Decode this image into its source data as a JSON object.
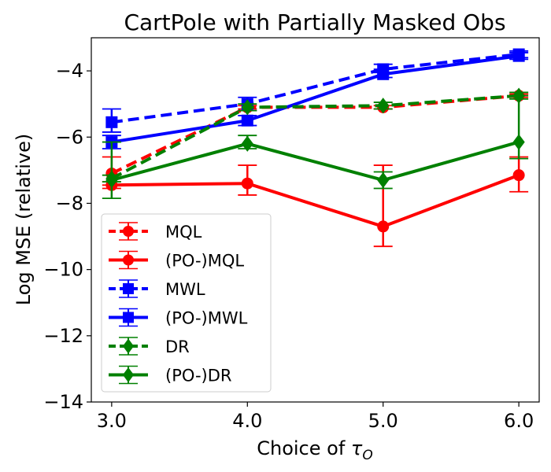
{
  "chart_data": {
    "type": "line",
    "title": "CartPole with Partially Masked Obs",
    "xlabel_text": "Choice of ",
    "xlabel_symbol": "τ",
    "xlabel_subscript": "O",
    "ylabel": "Log MSE (relative)",
    "x": [
      3.0,
      4.0,
      5.0,
      6.0
    ],
    "x_tick_labels": [
      "3.0",
      "4.0",
      "5.0",
      "6.0"
    ],
    "y_ticks": [
      -4,
      -6,
      -8,
      -10,
      -12,
      -14
    ],
    "y_tick_labels": [
      "−4",
      "−6",
      "−8",
      "−10",
      "−12",
      "−14"
    ],
    "xlim": [
      2.85,
      6.15
    ],
    "ylim": [
      -14,
      -3
    ],
    "legend_position": "lower-left",
    "series": [
      {
        "name": "MQL",
        "color": "#ff0000",
        "linestyle": "dashed",
        "marker": "circle",
        "values": [
          -7.1,
          -5.1,
          -5.1,
          -4.75
        ],
        "err_low": [
          -7.45,
          -5.15,
          -5.15,
          -4.8
        ],
        "err_high": [
          -6.6,
          -5.05,
          -5.05,
          -4.7
        ]
      },
      {
        "name": "(PO-)MQL",
        "color": "#ff0000",
        "linestyle": "solid",
        "marker": "circle",
        "values": [
          -7.45,
          -7.4,
          -8.7,
          -7.15
        ],
        "err_low": [
          -7.55,
          -7.75,
          -9.3,
          -7.65
        ],
        "err_high": [
          -7.35,
          -6.85,
          -6.85,
          -6.6
        ]
      },
      {
        "name": "MWL",
        "color": "#0000ff",
        "linestyle": "dashed",
        "marker": "square",
        "values": [
          -5.55,
          -5.0,
          -3.95,
          -3.5
        ],
        "err_low": [
          -5.85,
          -5.2,
          -4.05,
          -3.6
        ],
        "err_high": [
          -5.15,
          -4.8,
          -3.8,
          -3.4
        ]
      },
      {
        "name": "(PO-)MWL",
        "color": "#0000ff",
        "linestyle": "solid",
        "marker": "square",
        "values": [
          -6.15,
          -5.5,
          -4.1,
          -3.55
        ],
        "err_low": [
          -6.35,
          -5.65,
          -4.2,
          -3.65
        ],
        "err_high": [
          -5.95,
          -5.35,
          -3.95,
          -3.45
        ]
      },
      {
        "name": "DR",
        "color": "#008000",
        "linestyle": "dashed",
        "marker": "diamond",
        "values": [
          -7.25,
          -5.1,
          -5.05,
          -4.75
        ],
        "err_low": [
          -7.35,
          -5.2,
          -5.15,
          -4.85
        ],
        "err_high": [
          -7.15,
          -5.0,
          -4.95,
          -4.65
        ]
      },
      {
        "name": "(PO-)DR",
        "color": "#008000",
        "linestyle": "solid",
        "marker": "diamond",
        "values": [
          -7.3,
          -6.2,
          -7.3,
          -6.15
        ],
        "err_low": [
          -7.85,
          -6.35,
          -7.55,
          -6.65
        ],
        "err_high": [
          -6.15,
          -5.95,
          -7.05,
          -4.75
        ]
      }
    ]
  }
}
